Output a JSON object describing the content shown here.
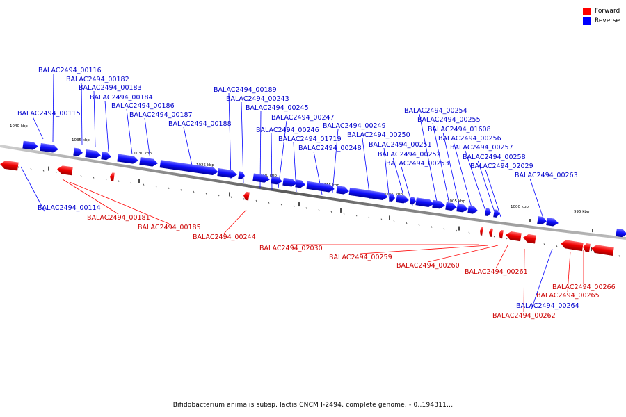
{
  "legend": {
    "forward_label": "Forward",
    "reverse_label": "Reverse",
    "forward_color": "#ff0000",
    "reverse_color": "#0000ff"
  },
  "caption": "Bifidobacterium animalis subsp. lactis CNCM I-2494, complete genome. - 0..194311...",
  "scale_labels": [
    "1040 kbp",
    "1035 kbp",
    "1030 kbp",
    "1025 kbp",
    "1020 kbp",
    "1015 kbp",
    "1010 kbp",
    "1005 kbp",
    "1000 kbp",
    "995 kbp"
  ],
  "reverse_genes": [
    "BALAC2494_00116",
    "BALAC2494_00182",
    "BALAC2494_00183",
    "BALAC2494_00184",
    "BALAC2494_00186",
    "BALAC2494_00187",
    "BALAC2494_00188",
    "BALAC2494_00115",
    "BALAC2494_00189",
    "BALAC2494_00243",
    "BALAC2494_00245",
    "BALAC2494_00247",
    "BALAC2494_00246",
    "BALAC2494_00249",
    "BALAC2494_01719",
    "BALAC2494_00250",
    "BALAC2494_00248",
    "BALAC2494_00251",
    "BALAC2494_00252",
    "BALAC2494_00253",
    "BALAC2494_00254",
    "BALAC2494_00255",
    "BALAC2494_01608",
    "BALAC2494_00256",
    "BALAC2494_00257",
    "BALAC2494_00258",
    "BALAC2494_02029",
    "BALAC2494_00263",
    "BALAC2494_00114",
    "BALAC2494_00264"
  ],
  "forward_genes": [
    "BALAC2494_00181",
    "BALAC2494_00185",
    "BALAC2494_00244",
    "BALAC2494_02030",
    "BALAC2494_00259",
    "BALAC2494_00260",
    "BALAC2494_00261",
    "BALAC2494_00266",
    "BALAC2494_00265",
    "BALAC2494_00262"
  ]
}
